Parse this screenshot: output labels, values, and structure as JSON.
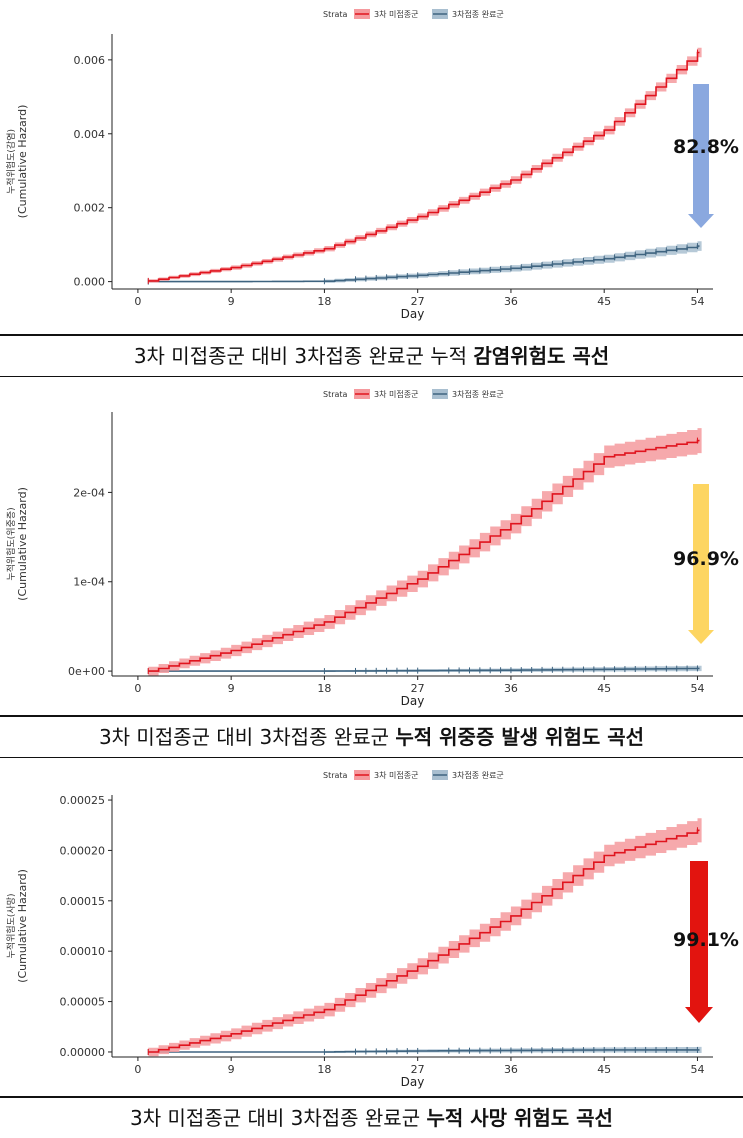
{
  "legend_title": "Strata",
  "strata": [
    "3차 미접종군",
    "3차접종 완료군"
  ],
  "colors": {
    "unvaccinated": "#e0141e",
    "unvaccinated_band": "#f59a9e",
    "vaccinated": "#3f6480",
    "vaccinated_band": "#a9bfd0",
    "arrow_blue": "#8aa8df",
    "arrow_yellow": "#fdd561",
    "arrow_red": "#e2140f"
  },
  "chart_data": [
    {
      "type": "line",
      "ylabel_top": "누적위험도(감염)",
      "ylabel": "(Cumulative Hazard)",
      "xlabel": "Day",
      "x_ticks": [
        0,
        9,
        18,
        27,
        36,
        45,
        54
      ],
      "y_ticks": [
        "0.000",
        "0.002",
        "0.004",
        "0.006"
      ],
      "y_tick_values": [
        0,
        0.002,
        0.004,
        0.006
      ],
      "xlim": [
        -2.5,
        55.5
      ],
      "ylim": [
        -0.0002,
        0.0067
      ],
      "series": [
        {
          "name": "3차 미접종군",
          "x": [
            1,
            9,
            18,
            27,
            36,
            45,
            54
          ],
          "y": [
            2e-05,
            0.00038,
            0.00089,
            0.00176,
            0.00275,
            0.0041,
            0.0062
          ],
          "band": 0.00013
        },
        {
          "name": "3차접종 완료군",
          "x": [
            1,
            9,
            18,
            27,
            36,
            45,
            54
          ],
          "y": [
            0.0,
            0.0,
            1e-05,
            0.00017,
            0.00036,
            0.00062,
            0.00096
          ],
          "band": 0.00013
        }
      ],
      "annotation": {
        "text": "82.8%",
        "arrow_color_key": "arrow_blue"
      },
      "caption": {
        "normal": "3차 미접종군 대비 3차접종 완료군 누적 ",
        "bold": "감염위험도 곡선"
      }
    },
    {
      "type": "line",
      "ylabel_top": "누적위험도(위중증)",
      "ylabel": "(Cumulative Hazard)",
      "xlabel": "Day",
      "x_ticks": [
        0,
        9,
        18,
        27,
        36,
        45,
        54
      ],
      "y_ticks": [
        "0e+00",
        "1e-04",
        "2e-04"
      ],
      "y_tick_values": [
        0,
        0.0001,
        0.0002
      ],
      "xlim": [
        -2.5,
        55.5
      ],
      "ylim": [
        -5.5e-06,
        0.00029
      ],
      "series": [
        {
          "name": "3차 미접종군",
          "x": [
            1,
            9,
            18,
            27,
            36,
            45,
            54
          ],
          "y": [
            0.0,
            2.3e-05,
            5.5e-05,
            0.000103,
            0.000165,
            0.00024,
            0.000258
          ],
          "band": 1.4e-05
        },
        {
          "name": "3차접종 완료군",
          "x": [
            1,
            9,
            18,
            27,
            36,
            45,
            54
          ],
          "y": [
            0.0,
            0.0,
            0.0,
            5e-07,
            1e-06,
            2e-06,
            3e-06
          ],
          "band": 3e-06
        }
      ],
      "annotation": {
        "text": "96.9%",
        "arrow_color_key": "arrow_yellow"
      },
      "caption": {
        "normal": "3차 미접종군 대비 3차접종 완료군 ",
        "bold": "누적 위중증 발생 위험도 곡선"
      }
    },
    {
      "type": "line",
      "ylabel_top": "누적위험도(사망)",
      "ylabel": "(Cumulative Hazard)",
      "xlabel": "Day",
      "x_ticks": [
        0,
        9,
        18,
        27,
        36,
        45,
        54
      ],
      "y_ticks": [
        "0.00000",
        "0.00005",
        "0.00010",
        "0.00015",
        "0.00020",
        "0.00025"
      ],
      "y_tick_values": [
        0,
        5e-05,
        0.0001,
        0.00015,
        0.0002,
        0.00025
      ],
      "xlim": [
        -2.5,
        55.5
      ],
      "ylim": [
        -5e-06,
        0.000255
      ],
      "series": [
        {
          "name": "3차 미접종군",
          "x": [
            1,
            9,
            18,
            27,
            36,
            45,
            54
          ],
          "y": [
            0.0,
            1.8e-05,
            4.2e-05,
            8.5e-05,
            0.000135,
            0.000195,
            0.00022
          ],
          "band": 1.2e-05
        },
        {
          "name": "3차접종 완료군",
          "x": [
            1,
            9,
            18,
            27,
            36,
            45,
            54
          ],
          "y": [
            0.0,
            0.0,
            0.0,
            1e-06,
            1.5e-06,
            2e-06,
            2e-06
          ],
          "band": 3e-06
        }
      ],
      "annotation": {
        "text": "99.1%",
        "arrow_color_key": "arrow_red"
      },
      "caption": {
        "normal": "3차 미접종군 대비 3차접종 완료군 ",
        "bold": "누적 사망 위험도 곡선"
      }
    }
  ]
}
